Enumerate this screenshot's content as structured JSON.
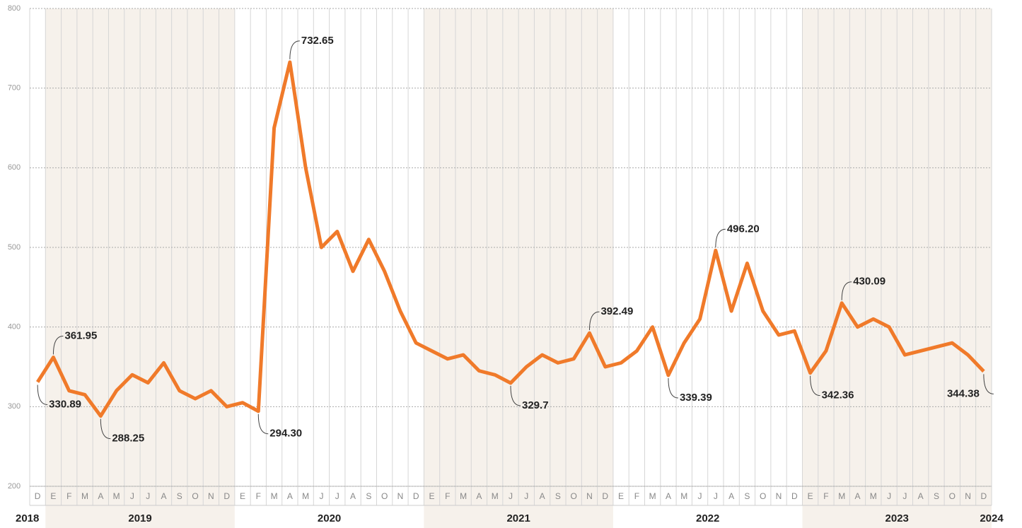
{
  "chart_data": {
    "type": "line",
    "categories": [
      "D",
      "E",
      "F",
      "M",
      "A",
      "M",
      "J",
      "J",
      "A",
      "S",
      "O",
      "N",
      "D",
      "E",
      "F",
      "M",
      "A",
      "M",
      "J",
      "J",
      "A",
      "S",
      "O",
      "N",
      "D",
      "E",
      "F",
      "M",
      "A",
      "M",
      "J",
      "J",
      "A",
      "S",
      "O",
      "N",
      "D",
      "E",
      "F",
      "M",
      "A",
      "M",
      "J",
      "J",
      "A",
      "S",
      "O",
      "N",
      "D",
      "E",
      "F",
      "M",
      "A",
      "M",
      "J",
      "J",
      "A",
      "S",
      "O",
      "N",
      "D"
    ],
    "year_labels": [
      "2018",
      "2019",
      "2020",
      "2021",
      "2022",
      "2023",
      "2024"
    ],
    "series": [
      {
        "color": "#f07a2a",
        "values": [
          330.89,
          361.95,
          320,
          315,
          288.25,
          320,
          340,
          330,
          355,
          320,
          310,
          320,
          300,
          305,
          294.3,
          650,
          732.65,
          600,
          500,
          520,
          470,
          510,
          470,
          420,
          380,
          370,
          360,
          365,
          345,
          340,
          329.7,
          350,
          365,
          355,
          360,
          392.49,
          350,
          355,
          370,
          400,
          339.39,
          380,
          410,
          496.2,
          420,
          480,
          420,
          390,
          395,
          342.36,
          370,
          430.09,
          400,
          410,
          400,
          365,
          370,
          375,
          380,
          365,
          344.38
        ],
        "value_labels": [
          "330.89",
          "361.95",
          null,
          null,
          "288.25",
          null,
          null,
          null,
          null,
          null,
          null,
          null,
          null,
          null,
          "294.30",
          null,
          "732.65",
          null,
          null,
          null,
          null,
          null,
          null,
          null,
          null,
          null,
          null,
          null,
          null,
          null,
          "329.7",
          null,
          null,
          null,
          null,
          "392.49",
          null,
          null,
          null,
          null,
          "339.39",
          null,
          null,
          "496.20",
          null,
          null,
          null,
          null,
          null,
          "342.36",
          null,
          "430.09",
          null,
          null,
          null,
          null,
          null,
          null,
          null,
          null,
          "344.38"
        ]
      }
    ],
    "ylim": [
      200,
      800
    ],
    "yticks": [
      200,
      300,
      400,
      500,
      600,
      700,
      800
    ],
    "grid": true
  }
}
